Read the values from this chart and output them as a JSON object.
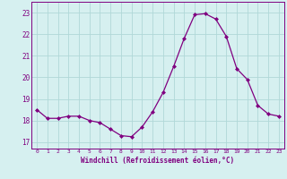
{
  "x": [
    0,
    1,
    2,
    3,
    4,
    5,
    6,
    7,
    8,
    9,
    10,
    11,
    12,
    13,
    14,
    15,
    16,
    17,
    18,
    19,
    20,
    21,
    22,
    23
  ],
  "y": [
    18.5,
    18.1,
    18.1,
    18.2,
    18.2,
    18.0,
    17.9,
    17.6,
    17.3,
    17.25,
    17.7,
    18.4,
    19.3,
    20.5,
    21.8,
    22.9,
    22.95,
    22.7,
    21.9,
    20.4,
    19.9,
    18.7,
    18.3,
    18.2
  ],
  "line_color": "#800080",
  "marker": "D",
  "marker_size": 2.0,
  "bg_color": "#d6f0f0",
  "grid_color": "#b0d8d8",
  "xlabel": "Windchill (Refroidissement éolien,°C)",
  "ylabel_ticks": [
    17,
    18,
    19,
    20,
    21,
    22,
    23
  ],
  "xlim": [
    -0.5,
    23.5
  ],
  "ylim": [
    16.7,
    23.5
  ],
  "xtick_labels": [
    "0",
    "1",
    "2",
    "3",
    "4",
    "5",
    "6",
    "7",
    "8",
    "9",
    "10",
    "11",
    "12",
    "13",
    "14",
    "15",
    "16",
    "17",
    "18",
    "19",
    "20",
    "21",
    "22",
    "23"
  ]
}
